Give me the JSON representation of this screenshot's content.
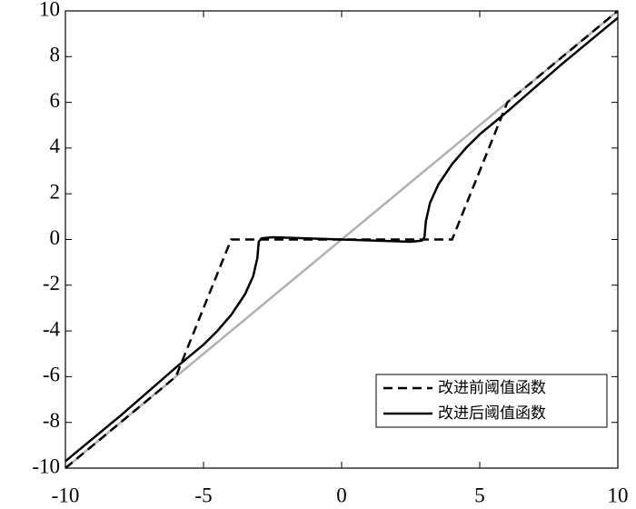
{
  "chart_data": {
    "type": "line",
    "xlim": [
      -10,
      10
    ],
    "ylim": [
      -10,
      10
    ],
    "xticks": [
      -10,
      -5,
      0,
      5,
      10
    ],
    "yticks": [
      -10,
      -8,
      -6,
      -4,
      -2,
      0,
      2,
      4,
      6,
      8,
      10
    ],
    "legend": "lower right",
    "series": [
      {
        "color": "#b0b0b0",
        "dash": "solid",
        "x": [
          -10,
          10
        ],
        "values": [
          -10,
          10
        ]
      },
      {
        "name": "改进前阈值函数",
        "color": "#000000",
        "dash": "dashed",
        "x": [
          -10,
          -6,
          -4,
          4,
          6,
          10
        ],
        "values": [
          -10,
          -6,
          0,
          0,
          6,
          10
        ]
      },
      {
        "name": "改进后阈值函数",
        "color": "#000000",
        "dash": "solid",
        "x": [
          -10,
          -8,
          -6,
          -5,
          -4.5,
          -4,
          -3.5,
          -3.2,
          -3.05,
          -3,
          -2.9,
          -2.5,
          -2,
          -1,
          0,
          1,
          2,
          2.5,
          2.9,
          3,
          3.05,
          3.2,
          3.5,
          4,
          4.5,
          5,
          6,
          8,
          10
        ],
        "values": [
          -9.7,
          -7.7,
          -5.6,
          -4.6,
          -4.0,
          -3.3,
          -2.4,
          -1.6,
          -0.8,
          -0.1,
          0.05,
          0.1,
          0.08,
          0.04,
          0,
          -0.04,
          -0.08,
          -0.1,
          -0.05,
          0.1,
          0.8,
          1.6,
          2.4,
          3.3,
          4.0,
          4.6,
          5.6,
          7.7,
          9.7
        ]
      }
    ]
  }
}
